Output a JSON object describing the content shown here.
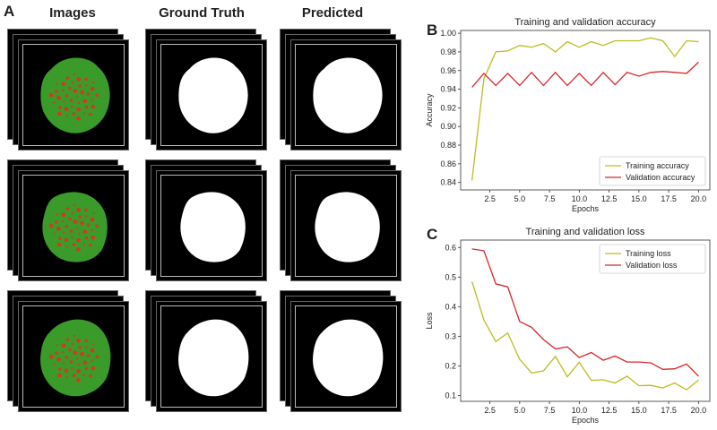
{
  "panels": {
    "a": "A",
    "b": "B",
    "c": "C"
  },
  "columns": {
    "images": "Images",
    "ground_truth": "Ground Truth",
    "predicted": "Predicted"
  },
  "colors": {
    "training": "#bcbd22",
    "validation": "#d62728",
    "cell_green": "#3a9a2a",
    "cell_red": "#d23b1a"
  },
  "chart_data": [
    {
      "type": "line",
      "title": "Training and validation accuracy",
      "xlabel": "Epochs",
      "ylabel": "Accuracy",
      "xlim": [
        0.05,
        20.95
      ],
      "ylim": [
        0.832,
        1.003
      ],
      "xticks": [
        2.5,
        5.0,
        7.5,
        10.0,
        12.5,
        15.0,
        17.5,
        20.0
      ],
      "xtick_labels": [
        "2.5",
        "5.0",
        "7.5",
        "10.0",
        "12.5",
        "15.0",
        "17.5",
        "20.0"
      ],
      "yticks": [
        0.84,
        0.86,
        0.88,
        0.9,
        0.92,
        0.94,
        0.96,
        0.98,
        1.0
      ],
      "ytick_labels": [
        "0.84",
        "0.86",
        "0.88",
        "0.90",
        "0.92",
        "0.94",
        "0.96",
        "0.98",
        "1.00"
      ],
      "legend_position": "bottom-right",
      "x": [
        1,
        2,
        3,
        4,
        5,
        6,
        7,
        8,
        9,
        10,
        11,
        12,
        13,
        14,
        15,
        16,
        17,
        18,
        19,
        20
      ],
      "series": [
        {
          "name": "Training accuracy",
          "color_key": "training",
          "values": [
            0.842,
            0.951,
            0.98,
            0.981,
            0.987,
            0.985,
            0.989,
            0.98,
            0.991,
            0.985,
            0.991,
            0.987,
            0.992,
            0.992,
            0.992,
            0.995,
            0.992,
            0.975,
            0.992,
            0.991
          ]
        },
        {
          "name": "Validation accuracy",
          "color_key": "validation",
          "values": [
            0.942,
            0.957,
            0.944,
            0.957,
            0.944,
            0.958,
            0.944,
            0.958,
            0.944,
            0.957,
            0.944,
            0.958,
            0.945,
            0.958,
            0.954,
            0.958,
            0.959,
            0.958,
            0.957,
            0.969
          ]
        }
      ]
    },
    {
      "type": "line",
      "title": "Training and validation loss",
      "xlabel": "Epochs",
      "ylabel": "Loss",
      "xlim": [
        0.05,
        20.95
      ],
      "ylim": [
        0.08,
        0.625
      ],
      "xticks": [
        2.5,
        5.0,
        7.5,
        10.0,
        12.5,
        15.0,
        17.5,
        20.0
      ],
      "xtick_labels": [
        "2.5",
        "5.0",
        "7.5",
        "10.0",
        "12.5",
        "15.0",
        "17.5",
        "20.0"
      ],
      "yticks": [
        0.1,
        0.2,
        0.3,
        0.4,
        0.5,
        0.6
      ],
      "ytick_labels": [
        "0.1",
        "0.2",
        "0.3",
        "0.4",
        "0.5",
        "0.6"
      ],
      "legend_position": "top-right",
      "x": [
        1,
        2,
        3,
        4,
        5,
        6,
        7,
        8,
        9,
        10,
        11,
        12,
        13,
        14,
        15,
        16,
        17,
        18,
        19,
        20
      ],
      "series": [
        {
          "name": "Training loss",
          "color_key": "training",
          "values": [
            0.485,
            0.355,
            0.282,
            0.311,
            0.222,
            0.176,
            0.183,
            0.232,
            0.163,
            0.212,
            0.151,
            0.153,
            0.142,
            0.165,
            0.133,
            0.134,
            0.125,
            0.142,
            0.119,
            0.152
          ]
        },
        {
          "name": "Validation loss",
          "color_key": "validation",
          "values": [
            0.595,
            0.589,
            0.477,
            0.467,
            0.35,
            0.33,
            0.289,
            0.257,
            0.264,
            0.228,
            0.245,
            0.219,
            0.233,
            0.213,
            0.213,
            0.21,
            0.188,
            0.19,
            0.206,
            0.165
          ]
        }
      ]
    }
  ]
}
